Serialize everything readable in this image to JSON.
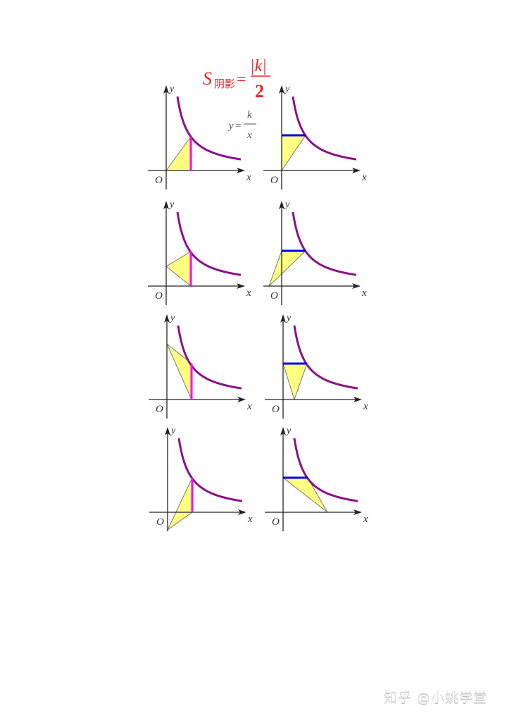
{
  "formula": {
    "s": "S",
    "sub": "阴影",
    "eq": "=",
    "num": "|k|",
    "den": "2",
    "color": "#ee2222"
  },
  "curve_label": {
    "y": "y",
    "eq": "=",
    "num": "k",
    "den": "x"
  },
  "axis_labels": {
    "x": "x",
    "y": "y",
    "origin": "O"
  },
  "colors": {
    "curve": "#8b108b",
    "vertical": "#ff00ff",
    "horizontal": "#0000ee",
    "shade": "#ffff80",
    "axis": "#222222"
  },
  "panels": [
    {
      "segment": "vertical"
    },
    {
      "segment": "horizontal"
    },
    {
      "segment": "vertical"
    },
    {
      "segment": "horizontal"
    },
    {
      "segment": "vertical"
    },
    {
      "segment": "horizontal"
    },
    {
      "segment": "vertical"
    },
    {
      "segment": "horizontal"
    }
  ],
  "watermark": "知乎 @小姚学堂"
}
